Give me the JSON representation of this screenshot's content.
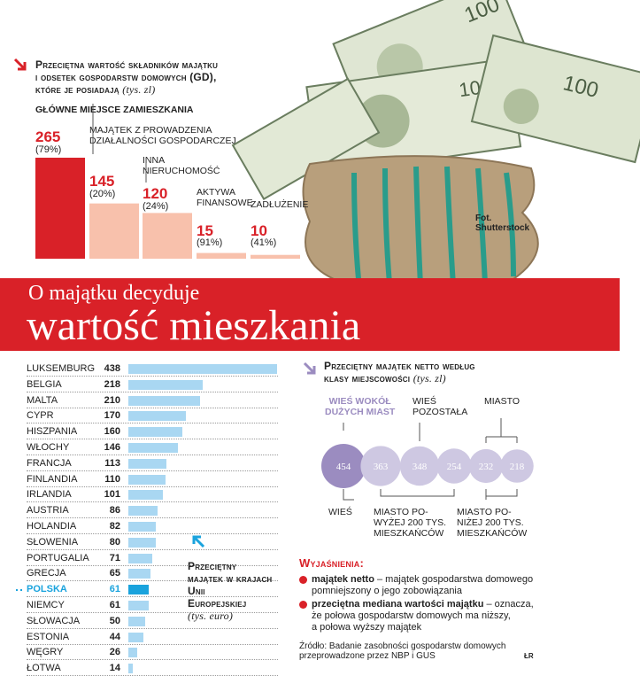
{
  "top_chart": {
    "title_line1": "Przeciętna wartość składników majątku",
    "title_line2": "i odsetek gospodarstw domowych (GD),",
    "title_line3": "które je posiadają",
    "unit": "(tys. zl)"
  },
  "banner": {
    "line1": "O majątku decyduje",
    "line2": "wartość mieszkania"
  },
  "photo_credit": {
    "line1": "Fot.",
    "line2": "Shutterstock"
  },
  "eu_chart": {
    "caption_line1": "Przeciętny",
    "caption_line2": "majątek w krajach",
    "caption_line3": "Unii",
    "caption_line4": "Europejskiej",
    "unit": "(tys. euro)"
  },
  "class_chart": {
    "title_line1": "Przeciętny majątek netto według",
    "title_line2": "klasy miejscowości",
    "unit": "(tys. zl)"
  },
  "legend": {
    "title": "Wyjaśnienia:",
    "item1_term": "majątek netto",
    "item1_text": " – majątek gospodarstwa domowego",
    "item1_text2": "pomniejszony o jego zobowiązania",
    "item2_term": "przeciętna mediana wartości majątku",
    "item2_text": " – oznacza,",
    "item2_text2": "że połowa gospodarstw domowych ma niższy,",
    "item2_text3": "a połowa wyższy majątek"
  },
  "source": {
    "line1": "Źródło: Badanie zasobności gospodarstw domowych",
    "line2": "przeprowadzone przez NBP i GUS"
  },
  "author_mark": "ŁR",
  "colors": {
    "red": "#d92128",
    "pink": "#f8c1ac",
    "blue": "#a9d7f2",
    "blue_dark": "#1aa3dd",
    "purple": "#9b8cc0",
    "lilac": "#cec8e2"
  },
  "chart_data": [
    {
      "type": "bar",
      "title": "Przeciętna wartość składników majątku i odsetek gospodarstw domowych (GD), które je posiadają (tys. zl)",
      "categories": [
        {
          "line1": "Główne miejsce zamieszkania",
          "line2": ""
        },
        {
          "line1": "Majątek z prowadzenia",
          "line2": "działalności gospodarczej"
        },
        {
          "line1": "Inna",
          "line2": "nieruchomość"
        },
        {
          "line1": "Aktywa",
          "line2": "finansowe"
        },
        {
          "line1": "Zadłużenie",
          "line2": ""
        }
      ],
      "values": [
        265,
        145,
        120,
        15,
        10
      ],
      "value_labels": [
        "265",
        "145",
        "120",
        "15",
        "10"
      ],
      "share_labels": [
        "(79%)",
        "(20%)",
        "(24%)",
        "(91%)",
        "(41%)"
      ]
    },
    {
      "type": "bar",
      "orientation": "horizontal",
      "title": "Przeciętny majątek w krajach Unii Europejskiej (tys. euro)",
      "highlight": "Polska",
      "rows": [
        {
          "country": "Luksemburg",
          "value": 438,
          "label": "438"
        },
        {
          "country": "Belgia",
          "value": 218,
          "label": "218"
        },
        {
          "country": "Malta",
          "value": 210,
          "label": "210"
        },
        {
          "country": "Cypr",
          "value": 170,
          "label": "170"
        },
        {
          "country": "Hiszpania",
          "value": 160,
          "label": "160"
        },
        {
          "country": "Włochy",
          "value": 146,
          "label": "146"
        },
        {
          "country": "Francja",
          "value": 113,
          "label": "113"
        },
        {
          "country": "Finlandia",
          "value": 110,
          "label": "110"
        },
        {
          "country": "Irlandia",
          "value": 101,
          "label": "101"
        },
        {
          "country": "Austria",
          "value": 86,
          "label": "86"
        },
        {
          "country": "Holandia",
          "value": 82,
          "label": "82"
        },
        {
          "country": "Słowenia",
          "value": 80,
          "label": "80"
        },
        {
          "country": "Portugalia",
          "value": 71,
          "label": "71"
        },
        {
          "country": "Grecja",
          "value": 65,
          "label": "65"
        },
        {
          "country": "Polska",
          "value": 61,
          "label": "61"
        },
        {
          "country": "Niemcy",
          "value": 61,
          "label": "61"
        },
        {
          "country": "Słowacja",
          "value": 50,
          "label": "50"
        },
        {
          "country": "Estonia",
          "value": 44,
          "label": "44"
        },
        {
          "country": "Węgry",
          "value": 26,
          "label": "26"
        },
        {
          "country": "Łotwa",
          "value": 14,
          "label": "14"
        }
      ]
    },
    {
      "type": "bubble",
      "title": "Przeciętny majątek netto według klasy miejscowości (tys. zl)",
      "points": [
        {
          "value": 454,
          "label": "454",
          "group": "Wieś"
        },
        {
          "value": 363,
          "label": "363",
          "group": "Wieś wokół dużych miast"
        },
        {
          "value": 348,
          "label": "348",
          "group": "Wieś pozostała"
        },
        {
          "value": 254,
          "label": "254",
          "group": "Miasto powyżej 200 tys. mieszkańców"
        },
        {
          "value": 232,
          "label": "232",
          "group": "Miasto"
        },
        {
          "value": 218,
          "label": "218",
          "group": "Miasto poniżej 200 tys. mieszkańców"
        }
      ],
      "group_labels": {
        "wies_wokol_1": "Wieś wokół",
        "wies_wokol_2": "dużych miast",
        "wies_poz_1": "Wieś",
        "wies_poz_2": "pozostała",
        "miasto": "Miasto",
        "wies": "Wieś",
        "mpow_1": "Miasto po-",
        "mpow_2": "wyżej 200 tys.",
        "mpow_3": "mieszkańców",
        "mponiz_1": "Miasto po-",
        "mponiz_2": "niżej 200 tys.",
        "mponiz_3": "mieszkańców"
      }
    }
  ]
}
